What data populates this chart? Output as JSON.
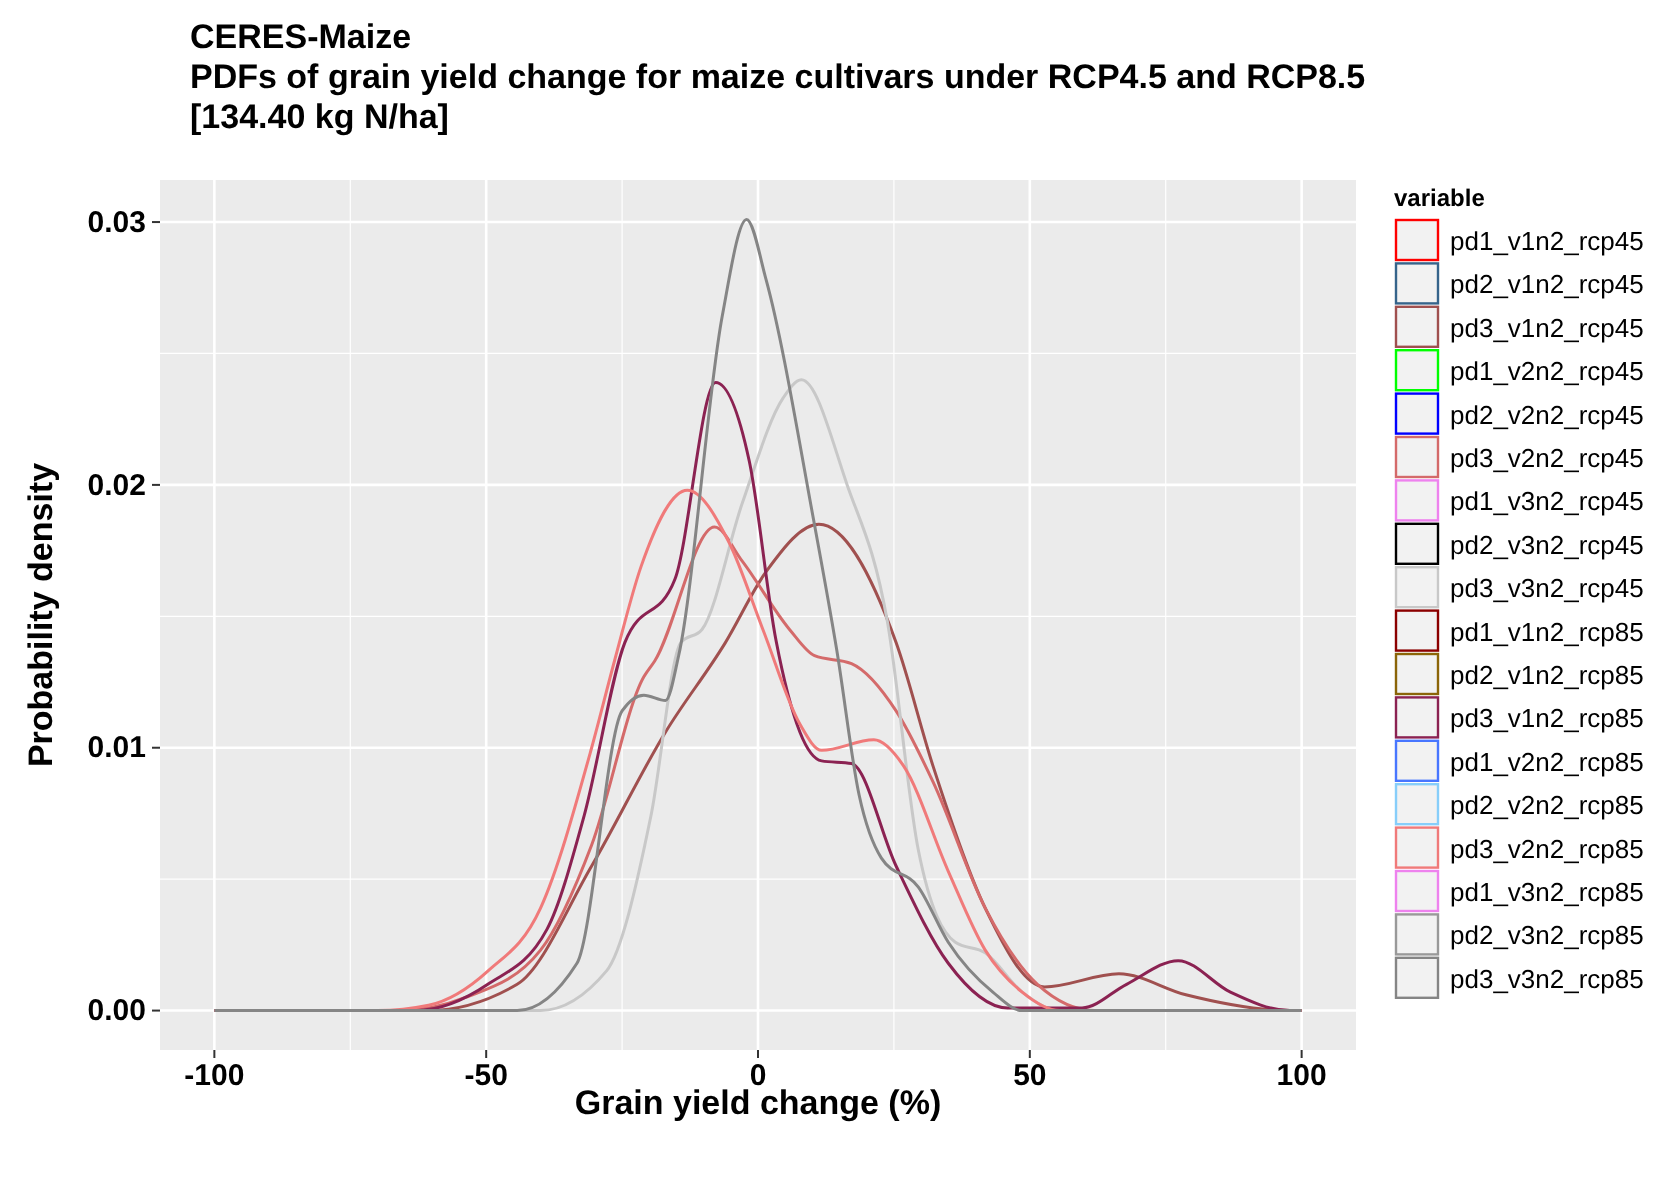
{
  "chart_data": {
    "type": "line",
    "title": "CERES-Maize\nPDFs of grain yield change for maize cultivars under RCP4.5 and RCP8.5\n[134.40 kg N/ha]",
    "xlabel": "Grain yield change (%)",
    "ylabel": "Probability density",
    "legend_title": "variable",
    "legend": "right",
    "grid": true,
    "line_style": "solid",
    "xlim": [
      -110,
      110
    ],
    "xticks": [
      -100,
      -50,
      0,
      50,
      100
    ],
    "ylim": [
      -0.0015,
      0.0316
    ],
    "yticks": [
      {
        "value": 0,
        "label": "0.00"
      },
      {
        "value": 0.01,
        "label": "0.01"
      },
      {
        "value": 0.02,
        "label": "0.02"
      },
      {
        "value": 0.03,
        "label": "0.03"
      }
    ],
    "series": [
      {
        "name": "pd1_v1n2_rcp45",
        "color": "#ff0000"
      },
      {
        "name": "pd2_v1n2_rcp45",
        "color": "#36648b"
      },
      {
        "name": "pd3_v1n2_rcp45",
        "color": "#a0504f",
        "x": [
          -100,
          -60.7,
          -44.3,
          -30.6,
          -17,
          -6,
          1.5,
          11.2,
          25.4,
          32.2,
          41.8,
          52.7,
          66.4,
          78.7,
          97.8,
          100
        ],
        "values": [
          0,
          0,
          0.001,
          0.0055,
          0.0106,
          0.014,
          0.0167,
          0.0185,
          0.014,
          0.0093,
          0.0039,
          0.0009,
          0.0014,
          0.0006,
          0,
          0
        ]
      },
      {
        "name": "pd1_v2n2_rcp45",
        "color": "#00ff00"
      },
      {
        "name": "pd2_v2n2_rcp45",
        "color": "#0000ff"
      },
      {
        "name": "pd3_v2n2_rcp45",
        "color": "#d46a6a",
        "x": [
          -100,
          -66,
          -53.8,
          -40,
          -30.6,
          -21,
          -19,
          -8,
          -2.9,
          5.8,
          10.4,
          17.2,
          25.4,
          32.2,
          41.8,
          51.4,
          62,
          100
        ],
        "values": [
          0,
          0,
          0.0005,
          0.0023,
          0.0063,
          0.0127,
          0.0133,
          0.0184,
          0.0171,
          0.0145,
          0.0135,
          0.0132,
          0.0114,
          0.0087,
          0.0039,
          0.001,
          0,
          0
        ]
      },
      {
        "name": "pd1_v3n2_rcp45",
        "color": "#ee82ee"
      },
      {
        "name": "pd2_v3n2_rcp45",
        "color": "#000000"
      },
      {
        "name": "pd3_v3n2_rcp45",
        "color": "#c8c8c8",
        "x": [
          -100,
          -40,
          -27.9,
          -19.7,
          -14.2,
          -10.3,
          -2.9,
          4.6,
          8,
          16.4,
          23.8,
          29.5,
          36.3,
          41.8,
          48.6,
          55.5,
          100
        ],
        "values": [
          0,
          0,
          0.0015,
          0.0074,
          0.014,
          0.0145,
          0.0193,
          0.0233,
          0.024,
          0.02,
          0.0148,
          0.0061,
          0.0026,
          0.0022,
          0.0007,
          0,
          0
        ]
      },
      {
        "name": "pd1_v1n2_rcp85",
        "color": "#8b0000"
      },
      {
        "name": "pd2_v1n2_rcp85",
        "color": "#8b6508"
      },
      {
        "name": "pd3_v1n2_rcp85",
        "color": "#8b2252",
        "x": [
          -100,
          -63,
          -49.7,
          -38.8,
          -32,
          -24.5,
          -15.3,
          -7.8,
          -1.6,
          3.3,
          7.7,
          11.7,
          17.2,
          25.4,
          35,
          45.9,
          59.6,
          67.8,
          77.3,
          86.9,
          97.8,
          100
        ],
        "values": [
          0,
          0,
          0.001,
          0.0031,
          0.0074,
          0.014,
          0.0164,
          0.0239,
          0.0209,
          0.0141,
          0.0106,
          0.0095,
          0.0094,
          0.0055,
          0.0018,
          0.0001,
          0.0001,
          0.001,
          0.0019,
          0.0007,
          0,
          0
        ]
      },
      {
        "name": "pd1_v2n2_rcp85",
        "color": "#4876ff"
      },
      {
        "name": "pd2_v2n2_rcp85",
        "color": "#87cefa"
      },
      {
        "name": "pd3_v2n2_rcp85",
        "color": "#f07a7a",
        "x": [
          -100,
          -70,
          -60.6,
          -49.7,
          -40,
          -30.6,
          -26.4,
          -21.5,
          -13,
          -5.3,
          0.9,
          7.7,
          11.7,
          21.3,
          26.8,
          35,
          41.8,
          48.6,
          55.5,
          100
        ],
        "values": [
          0,
          0,
          0.0002,
          0.0015,
          0.0039,
          0.01,
          0.0133,
          0.0169,
          0.0198,
          0.0178,
          0.0145,
          0.0109,
          0.0099,
          0.0103,
          0.0093,
          0.0053,
          0.0023,
          0.0007,
          0,
          0
        ]
      },
      {
        "name": "pd1_v3n2_rcp85",
        "color": "#ee82ee"
      },
      {
        "name": "pd2_v3n2_rcp85",
        "color": "#999999"
      },
      {
        "name": "pd3_v3n2_rcp85",
        "color": "#858585",
        "x": [
          -100,
          -44.3,
          -33.3,
          -25,
          -21,
          -17,
          -14.6,
          -6.6,
          -2.1,
          1.5,
          10.2,
          14.5,
          18.6,
          22.7,
          29.5,
          35,
          43.2,
          48.6,
          100
        ],
        "values": [
          0,
          0,
          0.0018,
          0.0114,
          0.012,
          0.0118,
          0.0135,
          0.0264,
          0.0301,
          0.0278,
          0.0187,
          0.0137,
          0.0082,
          0.0058,
          0.0047,
          0.0026,
          0.0007,
          0,
          0
        ]
      }
    ]
  }
}
